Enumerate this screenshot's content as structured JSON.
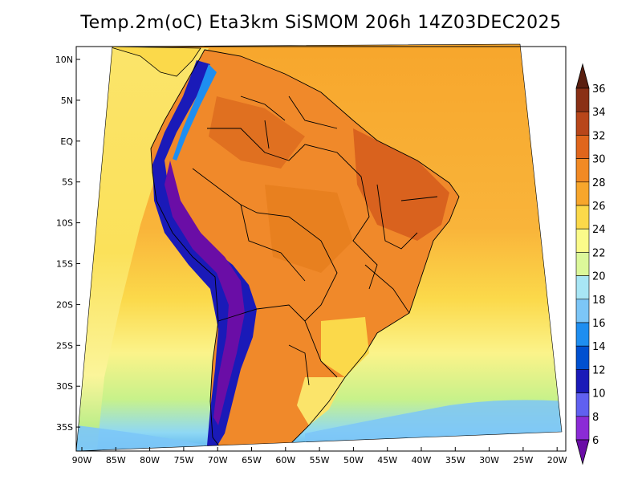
{
  "title": "Temp.2m(oC) Eta3km SiSMOM 206h 14Z03DEC2025",
  "map": {
    "variable": "Temp.2m",
    "units": "oC",
    "model": "Eta3km SiSMOM",
    "forecast_hour": "206h",
    "valid_time": "14Z03DEC2025",
    "lat_labels": [
      "10N",
      "5N",
      "EQ",
      "5S",
      "10S",
      "15S",
      "20S",
      "25S",
      "30S",
      "35S"
    ],
    "lon_labels": [
      "90W",
      "85W",
      "80W",
      "75W",
      "70W",
      "65W",
      "60W",
      "55W",
      "50W",
      "45W",
      "40W",
      "35W",
      "30W",
      "25W",
      "20W"
    ]
  },
  "colorbar": {
    "levels": [
      "6",
      "8",
      "10",
      "12",
      "14",
      "16",
      "18",
      "20",
      "22",
      "24",
      "26",
      "28",
      "30",
      "32",
      "34",
      "36"
    ],
    "colors": [
      "#6a0da6",
      "#8b2bd6",
      "#6060f0",
      "#1a1ab8",
      "#0050d0",
      "#1e8ef0",
      "#7cc6f7",
      "#a8e6f5",
      "#dcf89a",
      "#fbfb8a",
      "#fbd94a",
      "#f7a62c",
      "#f28a24",
      "#e0661c",
      "#b8461a",
      "#8a3016",
      "#5a1f10"
    ]
  },
  "colors": {
    "ocean_warm": "#f7a62c",
    "ocean_mid": "#fbd94a",
    "ocean_cool": "#fbfb8a",
    "ocean_cold": "#a8e6f5",
    "andes": "#1a1ab8",
    "border": "#000000"
  }
}
